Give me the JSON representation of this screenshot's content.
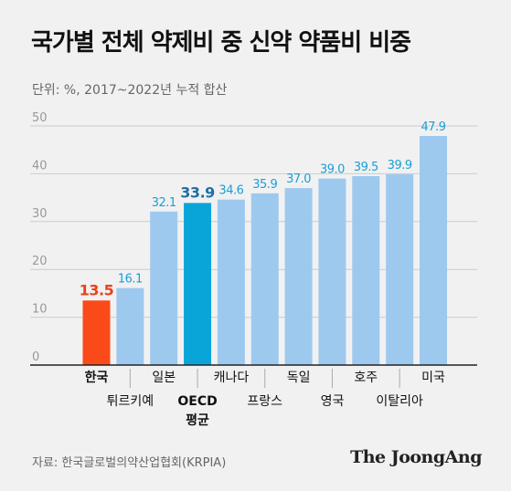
{
  "header": {
    "title": "국가별 전체 약제비 중 신약 약품비 비중",
    "subtitle": "단위: %, 2017~2022년 누적 합산"
  },
  "footer": {
    "source": "자료: 한국글로벌의약산업협회(KRPIA)",
    "logo": "The JoongAng"
  },
  "colors": {
    "default_bar": "#9dc9ef",
    "korea_bar": "#fb4a1a",
    "oecd_bar": "#0aa5d8",
    "default_label": "#1a9fd6",
    "korea_label": "#e8431a",
    "oecd_label": "#1f6fa8",
    "grid": "#cccccc",
    "tick": "#999999"
  },
  "chart_data": {
    "type": "bar",
    "categories": [
      "한국",
      "튀르키예",
      "일본",
      "OECD 평균",
      "캐나다",
      "프랑스",
      "독일",
      "영국",
      "호주",
      "이탈리아",
      "미국"
    ],
    "values": [
      13.5,
      16.1,
      32.1,
      33.9,
      34.6,
      35.9,
      37.0,
      39.0,
      39.5,
      39.9,
      47.9
    ],
    "value_labels": [
      "13.5",
      "16.1",
      "32.1",
      "33.9",
      "34.6",
      "35.9",
      "37.0",
      "39.0",
      "39.5",
      "39.9",
      "47.9"
    ],
    "highlight": {
      "한국": "korea",
      "OECD 평균": "oecd"
    },
    "yticks": [
      "0",
      "10",
      "20",
      "30",
      "40",
      "50"
    ],
    "ylim": [
      0,
      50
    ],
    "grid": true
  }
}
